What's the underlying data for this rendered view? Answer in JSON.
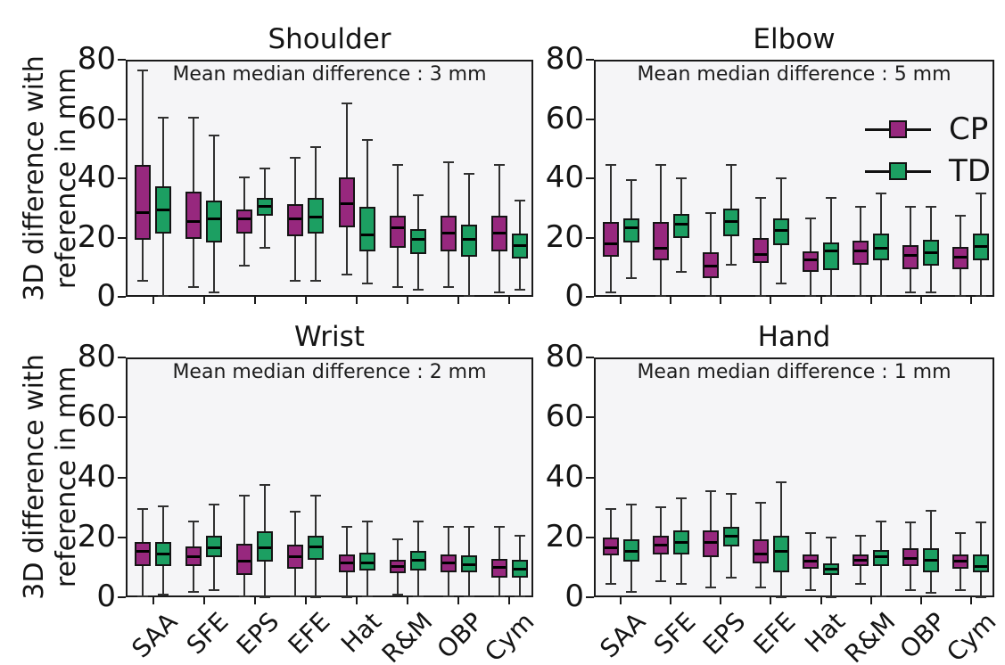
{
  "figure": {
    "ylabel_line1": "3D difference with",
    "ylabel_line2": "reference in mm"
  },
  "legend": {
    "items": [
      {
        "label": "CP",
        "series": "CP"
      },
      {
        "label": "TD",
        "series": "TD"
      }
    ]
  },
  "chart_data": {
    "type": "boxplot",
    "categories": [
      "SAA",
      "SFE",
      "EPS",
      "EFE",
      "Hat",
      "R&M",
      "OBP",
      "Cym"
    ],
    "series_names": [
      "CP",
      "TD"
    ],
    "colors": {
      "CP": "#97287E",
      "TD": "#1C9F62"
    },
    "ylim": [
      0,
      80
    ],
    "yticks": [
      0,
      20,
      40,
      60,
      80
    ],
    "ylabel": "3D difference with reference in mm",
    "grid": false,
    "legend_position": "upper-right-of-elbow",
    "box_stats_order": [
      "whisker_low",
      "q1",
      "median",
      "q3",
      "whisker_high"
    ],
    "subplots": [
      {
        "id": "shoulder",
        "title": "Shoulder",
        "annotation": "Mean median difference : 3 mm",
        "CP": [
          [
            6,
            20,
            29,
            45,
            77
          ],
          [
            4,
            20,
            26,
            36,
            61
          ],
          [
            11,
            22,
            27,
            30,
            41
          ],
          [
            6,
            21,
            27,
            32,
            47.5
          ],
          [
            8,
            24,
            32,
            41,
            66
          ],
          [
            4,
            17,
            24,
            28,
            45
          ],
          [
            4,
            16,
            22,
            28,
            46
          ],
          [
            2,
            16,
            22,
            28,
            45
          ]
        ],
        "TD": [
          [
            1,
            22,
            30,
            38,
            61
          ],
          [
            2,
            19,
            27,
            33,
            55
          ],
          [
            17,
            28,
            31,
            34,
            44
          ],
          [
            6,
            22,
            27.5,
            34,
            51
          ],
          [
            5,
            16,
            21.5,
            31,
            53.5
          ],
          [
            3,
            15,
            20,
            23.5,
            35
          ],
          [
            1,
            14,
            20,
            25,
            42
          ],
          [
            3,
            13.5,
            18,
            22,
            33
          ]
        ]
      },
      {
        "id": "elbow",
        "title": "Elbow",
        "annotation": "Mean median difference : 5 mm",
        "CP": [
          [
            2,
            14,
            18.5,
            26,
            45
          ],
          [
            1,
            13,
            17,
            26,
            45
          ],
          [
            1,
            7,
            11,
            15.5,
            29
          ],
          [
            1,
            12,
            15,
            20.5,
            34
          ],
          [
            1,
            9,
            13,
            16,
            27
          ],
          [
            1,
            11.5,
            16,
            19.5,
            31
          ],
          [
            2,
            10,
            14.5,
            18,
            31
          ],
          [
            1,
            10,
            14,
            17.5,
            28
          ]
        ],
        "TD": [
          [
            7,
            19,
            24,
            27,
            40
          ],
          [
            9,
            20.5,
            25,
            28.5,
            40.5
          ],
          [
            11.5,
            21,
            26,
            30.5,
            45
          ],
          [
            5,
            18,
            23,
            27,
            40.5
          ],
          [
            1,
            9.5,
            16,
            19,
            34
          ],
          [
            1,
            13,
            17,
            22,
            35.5
          ],
          [
            2,
            11,
            15.5,
            20,
            31
          ],
          [
            1,
            13,
            17.5,
            22,
            35.5
          ]
        ]
      },
      {
        "id": "wrist",
        "title": "Wrist",
        "annotation": "Mean median difference : 2 mm",
        "CP": [
          [
            1,
            11,
            16,
            19,
            30
          ],
          [
            2.5,
            11,
            14,
            17.5,
            26
          ],
          [
            1,
            8,
            12.5,
            18.5,
            34.5
          ],
          [
            1,
            10,
            14,
            18,
            29
          ],
          [
            0.5,
            9,
            12,
            15,
            24
          ],
          [
            1.5,
            8.5,
            11,
            13,
            20
          ],
          [
            1,
            9,
            12,
            15,
            24
          ],
          [
            1,
            7,
            10.5,
            13.5,
            24
          ]
        ],
        "TD": [
          [
            1.5,
            11,
            15,
            19,
            31
          ],
          [
            3,
            14,
            17,
            21,
            31.5
          ],
          [
            0.5,
            12.5,
            17,
            22.5,
            38
          ],
          [
            0.5,
            13,
            17.5,
            21,
            34.5
          ],
          [
            1,
            9.5,
            12,
            15.5,
            26
          ],
          [
            1,
            9.5,
            13,
            16,
            26
          ],
          [
            1,
            9,
            11.5,
            14.5,
            24
          ],
          [
            1,
            7,
            10,
            13,
            21
          ]
        ]
      },
      {
        "id": "hand",
        "title": "Hand",
        "annotation": "Mean median difference : 1 mm",
        "CP": [
          [
            5,
            14.5,
            17,
            20.5,
            30
          ],
          [
            6,
            15,
            18,
            21,
            30.5
          ],
          [
            4,
            14,
            19,
            23,
            36
          ],
          [
            4,
            12,
            15,
            20,
            32
          ],
          [
            3,
            10,
            12.5,
            15,
            22
          ],
          [
            5,
            11,
            13,
            15,
            21
          ],
          [
            3,
            11,
            13.5,
            17,
            25.5
          ],
          [
            3,
            10,
            12.5,
            15,
            22
          ]
        ],
        "TD": [
          [
            2.5,
            12.5,
            16,
            20,
            31.5
          ],
          [
            5,
            15,
            19,
            23,
            33.5
          ],
          [
            7,
            17.5,
            21,
            24,
            35
          ],
          [
            0.5,
            9,
            16,
            21,
            39
          ],
          [
            0.5,
            8,
            10,
            12,
            20.5
          ],
          [
            1,
            11,
            14,
            16.5,
            26
          ],
          [
            2,
            9,
            13,
            17,
            29.5
          ],
          [
            0.5,
            9,
            11,
            15,
            25.5
          ]
        ]
      }
    ]
  }
}
